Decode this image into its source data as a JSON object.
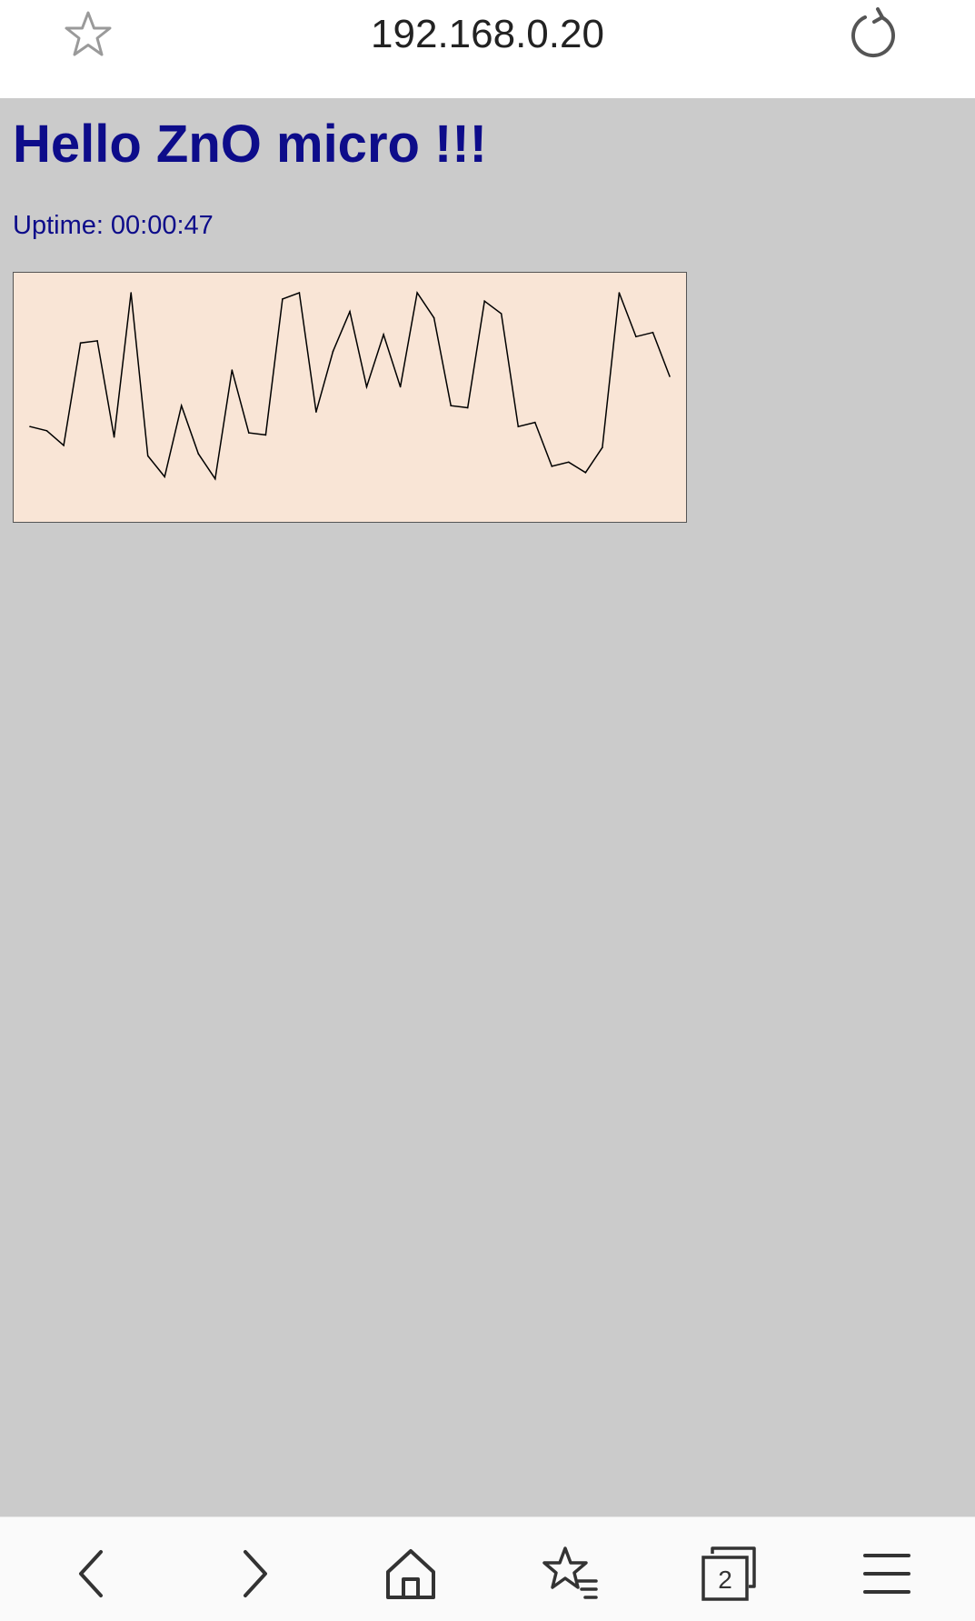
{
  "browser": {
    "url": "192.168.0.20",
    "tab_count": "2",
    "icons": {
      "bookmark": "star-icon",
      "reload": "reload-icon",
      "back": "back-arrow-icon",
      "forward": "forward-arrow-icon",
      "home": "home-icon",
      "bookmarks": "bookmarks-icon",
      "tabs": "tabs-icon",
      "menu": "menu-icon"
    }
  },
  "page": {
    "title": "Hello ZnO micro !!!",
    "uptime_label": "Uptime:",
    "uptime_value": "00:00:47",
    "colors": {
      "background": "#cbcbcb",
      "text": "#0d0c8a",
      "chart_background": "#f9e5d6",
      "line": "#000000"
    }
  },
  "chart_data": {
    "type": "line",
    "title": "",
    "xlabel": "",
    "ylabel": "",
    "grid": false,
    "ylim": [
      0,
      100
    ],
    "series": [
      {
        "values": [
          36,
          34,
          27,
          76,
          77,
          31,
          100,
          22,
          12,
          46,
          23,
          11,
          63,
          33,
          32,
          97,
          100,
          43,
          72,
          91,
          55,
          80,
          55,
          100,
          88,
          46,
          45,
          96,
          90,
          36,
          38,
          17,
          19,
          14,
          26,
          100,
          79,
          81,
          60
        ]
      }
    ]
  }
}
